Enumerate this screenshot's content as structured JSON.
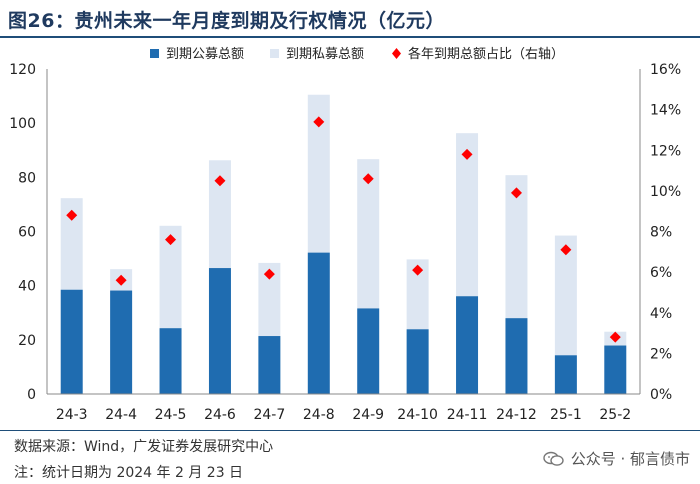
{
  "title": "图26：贵州未来一年月度到期及行权情况（亿元）",
  "legend": {
    "public": "到期公募总额",
    "private": "到期私募总额",
    "ratio": "各年到期总额占比（右轴）"
  },
  "colors": {
    "public": "#1f6cb0",
    "private": "#dde6f2",
    "ratio": "#ff0000",
    "rule": "#1f4e79"
  },
  "source": "数据来源：Wind，广发证券发展研究中心",
  "note": "注：统计日期为 2024 年 2 月 23 日",
  "watermark": "公众号 · 郁言债市",
  "watermark_icon": "wechat-icon",
  "chart_data": {
    "type": "bar",
    "stacked": true,
    "categories": [
      "24-3",
      "24-4",
      "24-5",
      "24-6",
      "24-7",
      "24-8",
      "24-9",
      "24-10",
      "24-11",
      "24-12",
      "25-1",
      "25-2"
    ],
    "series": [
      {
        "name": "到期公募总额",
        "axis": "left",
        "values": [
          38.5,
          38.2,
          24.3,
          46.5,
          21.4,
          52.2,
          31.6,
          23.9,
          36.1,
          28.0,
          14.3,
          17.9
        ]
      },
      {
        "name": "到期私募总额",
        "axis": "left",
        "values": [
          33.8,
          7.9,
          37.8,
          39.8,
          27.0,
          58.3,
          55.1,
          25.8,
          60.2,
          52.8,
          44.2,
          5.1
        ]
      },
      {
        "name": "各年到期总额占比（右轴）",
        "axis": "right",
        "type": "scatter",
        "values": [
          0.088,
          0.056,
          0.076,
          0.105,
          0.059,
          0.134,
          0.106,
          0.061,
          0.118,
          0.099,
          0.071,
          0.028
        ]
      }
    ],
    "y_left": {
      "min": 0,
      "max": 120,
      "ticks": [
        "0",
        "20",
        "40",
        "60",
        "80",
        "100",
        "120"
      ]
    },
    "y_right": {
      "min": 0,
      "max": 0.16,
      "ticks": [
        "0%",
        "2%",
        "4%",
        "6%",
        "8%",
        "10%",
        "12%",
        "14%",
        "16%"
      ]
    },
    "grid": false,
    "legend_position": "top"
  }
}
